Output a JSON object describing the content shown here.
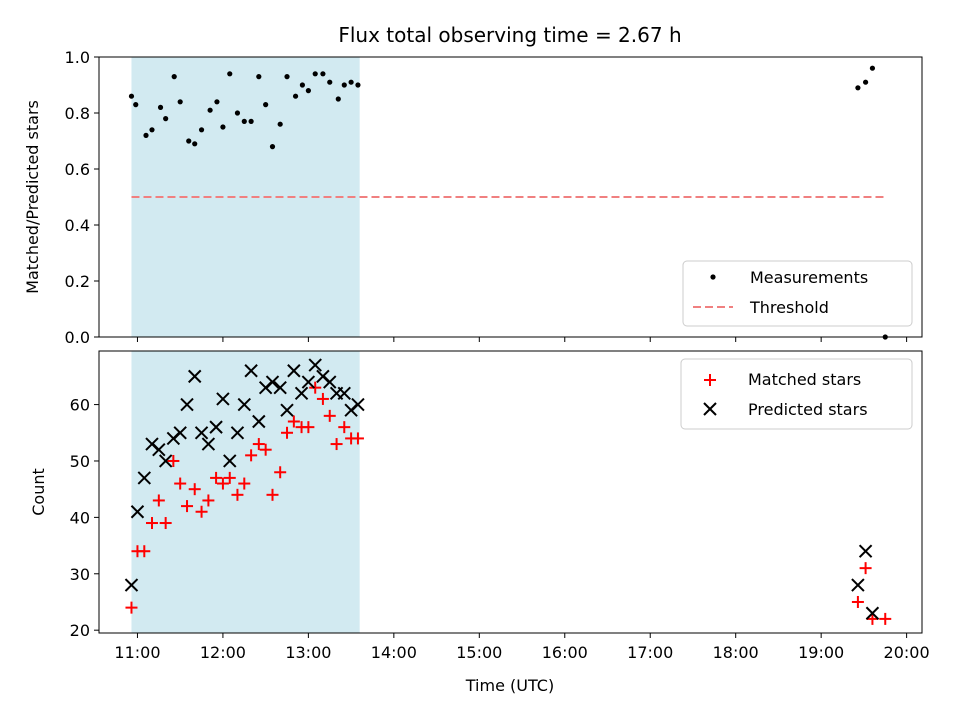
{
  "chart_data": [
    {
      "type": "scatter",
      "title": "Flux total observing time = 2.67 h",
      "ylabel": "Matched/Predicted stars",
      "xlabel": "",
      "ylim": [
        0,
        1.0
      ],
      "xlim_hours": [
        10.55,
        20.18
      ],
      "y_ticks": [
        0.0,
        0.2,
        0.4,
        0.6,
        0.8,
        1.0
      ],
      "y_tick_labels": [
        "0.0",
        "0.2",
        "0.4",
        "0.6",
        "0.8",
        "1.0"
      ],
      "shaded_span": {
        "x": [
          10.93,
          13.6
        ],
        "color": "#add8e6"
      },
      "legend_position": "lower-right",
      "series": [
        {
          "name": "Measurements",
          "marker": "dot",
          "color": "#000000",
          "x": [
            10.93,
            10.98,
            11.1,
            11.17,
            11.27,
            11.33,
            11.43,
            11.5,
            11.6,
            11.67,
            11.75,
            11.85,
            11.93,
            12.0,
            12.08,
            12.17,
            12.25,
            12.33,
            12.42,
            12.5,
            12.58,
            12.67,
            12.75,
            12.85,
            12.93,
            13.0,
            13.08,
            13.17,
            13.25,
            13.35,
            13.42,
            13.5,
            13.58,
            19.43,
            19.52,
            19.6,
            19.75
          ],
          "y": [
            0.86,
            0.83,
            0.72,
            0.74,
            0.82,
            0.78,
            0.93,
            0.84,
            0.7,
            0.69,
            0.74,
            0.81,
            0.84,
            0.75,
            0.94,
            0.8,
            0.77,
            0.77,
            0.93,
            0.83,
            0.68,
            0.76,
            0.93,
            0.86,
            0.9,
            0.88,
            0.94,
            0.94,
            0.91,
            0.85,
            0.9,
            0.91,
            0.9,
            0.89,
            0.91,
            0.96,
            0.0
          ]
        },
        {
          "name": "Threshold",
          "style": "dashed",
          "color": "#f08080",
          "x": [
            10.93,
            19.75
          ],
          "y": [
            0.5,
            0.5
          ]
        }
      ]
    },
    {
      "type": "scatter",
      "title": "",
      "ylabel": "Count",
      "xlabel": "Time (UTC)",
      "ylim": [
        19.5,
        69.5
      ],
      "xlim_hours": [
        10.55,
        20.18
      ],
      "y_ticks": [
        20,
        30,
        40,
        50,
        60
      ],
      "y_tick_labels": [
        "20",
        "30",
        "40",
        "50",
        "60"
      ],
      "x_ticks": [
        11,
        12,
        13,
        14,
        15,
        16,
        17,
        18,
        19,
        20
      ],
      "x_tick_labels": [
        "11:00",
        "12:00",
        "13:00",
        "14:00",
        "15:00",
        "16:00",
        "17:00",
        "18:00",
        "19:00",
        "20:00"
      ],
      "shaded_span": {
        "x": [
          10.93,
          13.6
        ],
        "color": "#add8e6"
      },
      "legend_position": "upper-right",
      "series": [
        {
          "name": "Matched stars",
          "marker": "plus",
          "color": "#ff0000",
          "x": [
            10.93,
            11.0,
            11.08,
            11.17,
            11.25,
            11.33,
            11.42,
            11.5,
            11.58,
            11.67,
            11.75,
            11.83,
            11.92,
            12.0,
            12.08,
            12.17,
            12.25,
            12.33,
            12.42,
            12.5,
            12.58,
            12.67,
            12.75,
            12.83,
            12.92,
            13.0,
            13.08,
            13.17,
            13.25,
            13.33,
            13.42,
            13.5,
            13.58,
            19.43,
            19.52,
            19.6,
            19.75
          ],
          "y": [
            24,
            34,
            34,
            39,
            43,
            39,
            50,
            46,
            42,
            45,
            41,
            43,
            47,
            46,
            47,
            44,
            46,
            51,
            53,
            52,
            44,
            48,
            55,
            57,
            56,
            56,
            63,
            61,
            58,
            53,
            56,
            54,
            54,
            25,
            31,
            22,
            22
          ]
        },
        {
          "name": "Predicted stars",
          "marker": "x",
          "color": "#000000",
          "x": [
            10.93,
            11.0,
            11.08,
            11.17,
            11.25,
            11.33,
            11.42,
            11.5,
            11.58,
            11.67,
            11.75,
            11.83,
            11.92,
            12.0,
            12.08,
            12.17,
            12.25,
            12.33,
            12.42,
            12.5,
            12.58,
            12.67,
            12.75,
            12.83,
            12.92,
            13.0,
            13.08,
            13.17,
            13.25,
            13.33,
            13.42,
            13.5,
            13.58,
            19.43,
            19.52,
            19.6
          ],
          "y": [
            28,
            41,
            47,
            53,
            52,
            50,
            54,
            55,
            60,
            65,
            55,
            53,
            56,
            61,
            50,
            55,
            60,
            66,
            57,
            63,
            64,
            63,
            59,
            66,
            62,
            64,
            67,
            65,
            64,
            62,
            62,
            59,
            60,
            28,
            34,
            23
          ]
        }
      ]
    }
  ]
}
